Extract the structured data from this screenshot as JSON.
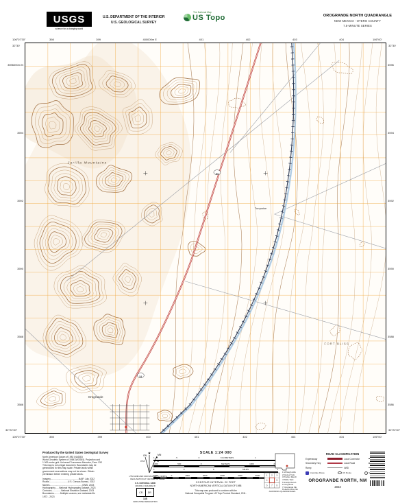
{
  "colors": {
    "contour": "#c09a70",
    "contour_index": "#a5764a",
    "grid": "#f0a73c",
    "highway": "#bf3a3a",
    "highway_fill": "#f0d8cf",
    "railroad": "#2d3a55",
    "water": "#a9c8e2",
    "gray_line": "#8e939c"
  },
  "header": {
    "usgs_logo": "USGS",
    "usgs_tagline": "science for a changing world",
    "dept_line1": "U.S. DEPARTMENT OF THE INTERIOR",
    "dept_line2": "U.S. GEOLOGICAL SURVEY",
    "ustopo_small": "The National Map",
    "ustopo_brand": "US Topo",
    "quad_title": "OROGRANDE NORTH QUADRANGLE",
    "quad_sub": "NEW MEXICO - OTERO COUNTY",
    "quad_series": "7.5-MINUTE SERIES"
  },
  "map": {
    "labels": {
      "jarilla": "Jarilla Mountains",
      "orogrande": "Orogrande",
      "turquoise": "Turquoise",
      "fort_bliss": "FORT BLISS",
      "route": "54"
    },
    "edge": {
      "top_left_lon": "106°07'30\"",
      "top_right_lon": "106°00'",
      "bottom_left_lon": "106°07'30\"",
      "bottom_right_lon": "106°00'",
      "lat_top_left": "32°30'",
      "lat_top_right": "32°30'",
      "lat_bottom_left": "32°22'30\"",
      "lat_bottom_right": "32°22'30\"",
      "top_numbers": [
        "398",
        "399",
        "400000m E",
        "401",
        "402",
        "403",
        "404"
      ],
      "bottom_numbers": [
        "398",
        "399",
        "400",
        "401",
        "402",
        "403",
        "404"
      ],
      "left_numbers": [
        "3596000m N",
        "3594",
        "3592",
        "3590",
        "3588",
        "3586"
      ],
      "right_numbers": [
        "3596",
        "3594",
        "3592",
        "3590",
        "3588",
        "3586"
      ]
    }
  },
  "collar": {
    "produced": {
      "title": "Produced by the United States Geological Survey",
      "lines": [
        "North American Datum of 1983 (NAD83)",
        "World Geodetic System of 1984 (WGS84). Projection and",
        "1 000-meter grid: Universal Transverse Mercator, Zone 13S",
        "This map is not a legal document. Boundaries may be",
        "generalized for this map scale. Private lands within",
        "government reservations may not be shown. Obtain",
        "permission before entering private lands."
      ],
      "credits": [
        "Imagery.............................................NAIP, July 2022",
        "Roads..............................U.S. Census Bureau, 2022",
        "Names....................................................GNIS, 2023",
        "Hydrography......National Hydrography Dataset, 2023",
        "Contours...............National Elevation Dataset, 2023",
        "Boundaries..........Multiple sources; see metadata file",
        "1972 - 2023"
      ]
    },
    "declination": {
      "gn_label": "GN",
      "mn_label": "MN",
      "gn_value": "0°16'",
      "mn_value": "7°44'",
      "caption1": "UTM GRID AND 2023 MAGNETIC NORTH",
      "caption2": "DECLINATION AT CENTER OF SHEET"
    },
    "usng": {
      "title": "U.S. NATIONAL GRID",
      "subtitle": "100,000-m SQUARE ID",
      "square1": "CR",
      "square2": "DR",
      "zone": "13S",
      "caption": "GRID ZONE DESIGNATION"
    },
    "scale": {
      "title": "SCALE 1:24 000",
      "km_row": [
        "1",
        ".5",
        "0",
        "KILOMETERS",
        "1",
        "2"
      ],
      "m_row": [
        "1000",
        "500",
        "0",
        "METERS",
        "1000",
        "2000"
      ],
      "mi_row": [
        "1",
        ".5",
        "0",
        "MILES",
        "1"
      ],
      "ft_row": [
        "1000",
        "0",
        "1000",
        "2000",
        "3000",
        "4000",
        "5000",
        "FEET"
      ],
      "contour_note": "CONTOUR INTERVAL 20 FEET",
      "datum_note": "NORTH AMERICAN VERTICAL DATUM OF 1988",
      "standard_note1": "This map was produced to conform with the",
      "standard_note2": "National Geospatial Program US Topo Product Standard, 2011."
    },
    "adjoining": {
      "title": "ADJOINING QUADRANGLES",
      "names": [
        "1 McVeigh Hills",
        "2 Davies Tank",
        "3 Prather Ranch",
        "4 Wilde Tank",
        "5 Szerlip Ranch",
        "6 Orogrande",
        "7 Orogrande SE",
        "8 Hueco Mtns NE"
      ]
    },
    "road_class": {
      "title": "ROAD CLASSIFICATION",
      "expressway": "Expressway",
      "secondary": "Secondary Hwy",
      "ramp": "Ramp",
      "local_connector": "Local Connector",
      "local_road": "Local Road",
      "fourwd": "4WD",
      "interstate": "Interstate Route",
      "us_route": "US Route",
      "state_route": "State Route"
    },
    "title_block": {
      "name": "OROGRANDE NORTH,  NM",
      "year": "2023"
    }
  }
}
